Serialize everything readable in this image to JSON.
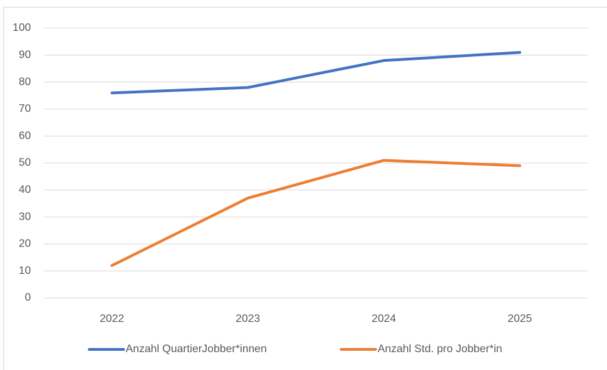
{
  "chart_data": {
    "type": "line",
    "categories": [
      "2022",
      "2023",
      "2024",
      "2025"
    ],
    "series": [
      {
        "name": "Anzahl QuartierJobber*innen",
        "color": "#4472c4",
        "values": [
          76,
          78,
          88,
          91
        ]
      },
      {
        "name": "Anzahl Std. pro Jobber*in",
        "color": "#ed7d31",
        "values": [
          12,
          37,
          51,
          49
        ]
      }
    ],
    "ylim": [
      0,
      100
    ],
    "yticks": [
      0,
      10,
      20,
      30,
      40,
      50,
      60,
      70,
      80,
      90,
      100
    ],
    "grid": true,
    "legend": "bottom"
  }
}
